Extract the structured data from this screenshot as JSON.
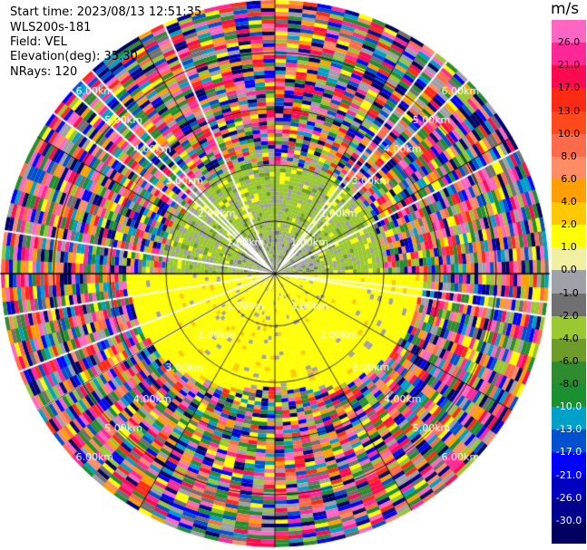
{
  "info": {
    "start_time": "Start time: 2023/08/13 12:51:35",
    "instrument": "WLS200s-181",
    "field": "Field: VEL",
    "elevation": "Elevation(deg): 35.30",
    "nrays": "NRays: 120"
  },
  "colorbar": {
    "unit": "m/s",
    "ticks": [
      "26.0",
      "21.0",
      "17.0",
      "13.0",
      "10.0",
      "8.0",
      "6.0",
      "4.0",
      "2.0",
      "1.0",
      "0.0",
      "-1.0",
      "-2.0",
      "-4.0",
      "-6.0",
      "-8.0",
      "-10.0",
      "-13.0",
      "-17.0",
      "-21.0",
      "-26.0",
      "-30.0"
    ],
    "colors": [
      "#ff66c4",
      "#ff2896",
      "#ff0a50",
      "#ff2a14",
      "#ff4a1e",
      "#ff6a4a",
      "#ff8c64",
      "#ffa000",
      "#ffc800",
      "#ffff00",
      "#f0f0a0",
      "#a0a0a8",
      "#707070",
      "#9ac830",
      "#6e9c28",
      "#2e8c2e",
      "#1a9030",
      "#00a0c8",
      "#0050d0",
      "#0000ff",
      "#0000c0",
      "#000090",
      "#000060"
    ]
  },
  "chart_data": {
    "type": "ppi",
    "field": "VEL",
    "units": "m/s",
    "nrays": 120,
    "elevation_deg": 35.3,
    "range_rings": [
      "1.00km",
      "2.00km",
      "3.00km",
      "4.00km",
      "5.00km",
      "6.00km"
    ],
    "colorbar_range": [
      -30.0,
      26.0
    ]
  }
}
